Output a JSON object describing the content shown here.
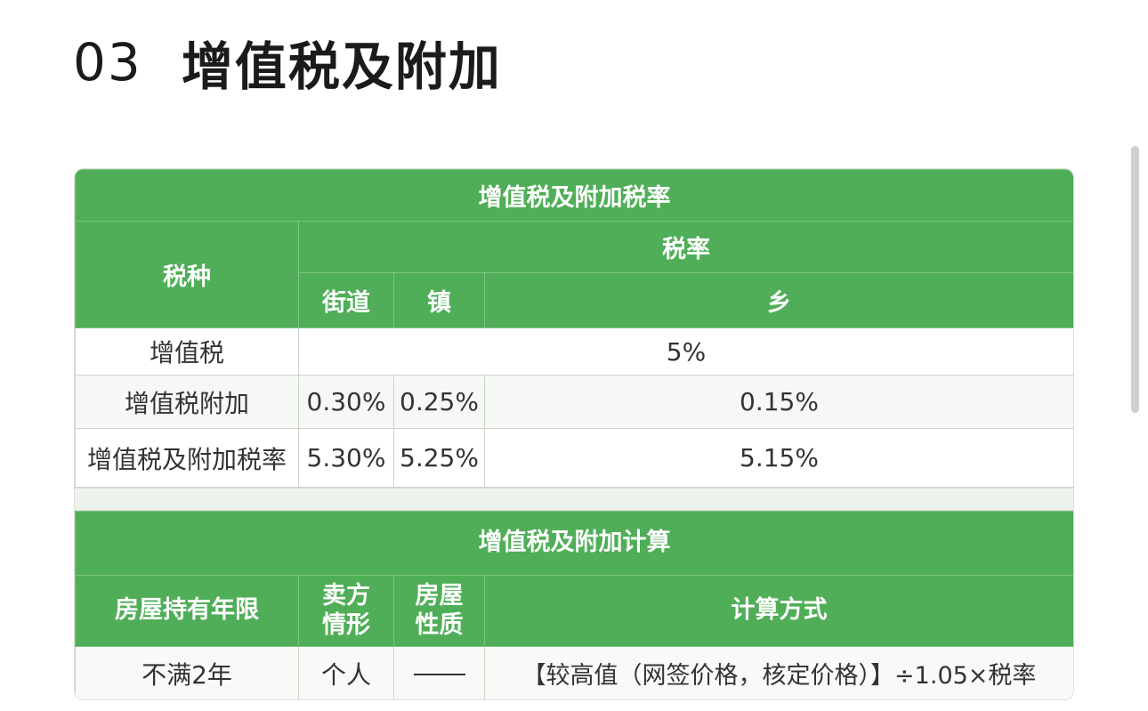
{
  "heading": {
    "number": "03",
    "title": "增值税及附加"
  },
  "rate_table": {
    "title": "增值税及附加税率",
    "col_tax_type": "税种",
    "col_rate": "税率",
    "col_street": "街道",
    "col_town": "镇",
    "col_township": "乡",
    "rows": [
      {
        "label": "增值税",
        "merged": "5%"
      },
      {
        "label": "增值税附加",
        "street": "0.30%",
        "town": "0.25%",
        "township": "0.15%"
      },
      {
        "label": "增值税及附加税率",
        "street": "5.30%",
        "town": "5.25%",
        "township": "5.15%"
      }
    ]
  },
  "calc_table": {
    "title": "增值税及附加计算",
    "col_holding": "房屋持有年限",
    "col_seller": "卖方情形",
    "col_property": "房屋性质",
    "col_method": "计算方式",
    "rows": [
      {
        "holding": "不满2年",
        "seller": "个人",
        "property": "——",
        "method": "【较高值（网签价格，核定价格）】÷1.05×税率"
      }
    ]
  },
  "colors": {
    "header_green": "#4fae57",
    "text_dark": "#333333"
  }
}
